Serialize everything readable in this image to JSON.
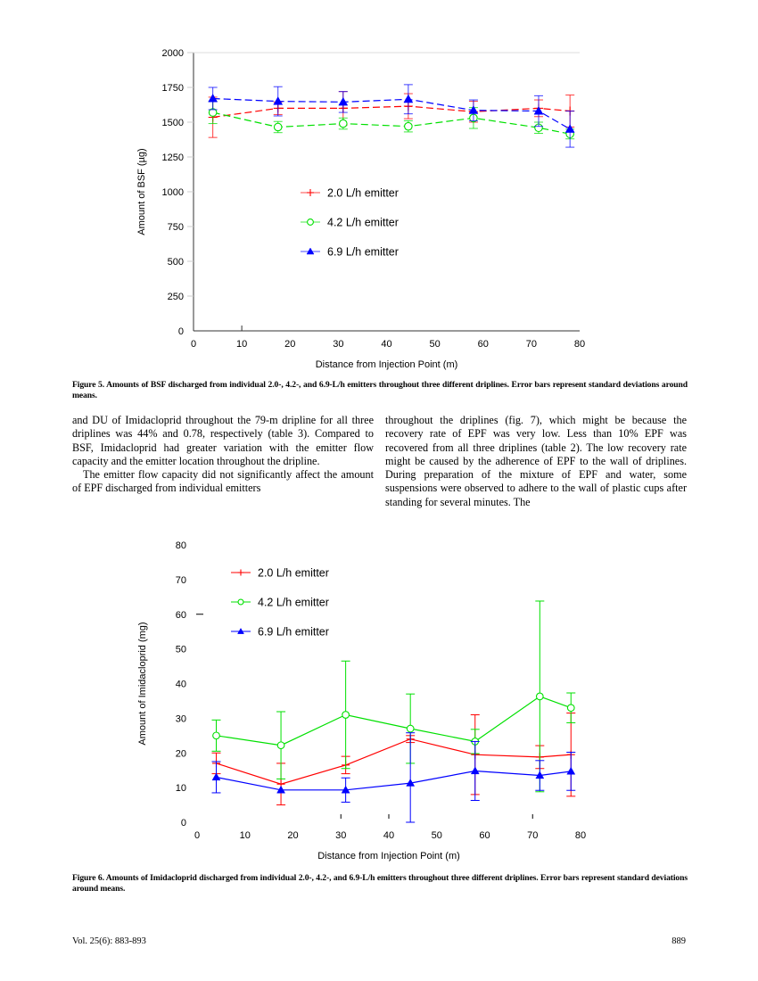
{
  "chart_data": [
    {
      "type": "line",
      "title": "",
      "xlabel": "Distance from Injection Point (m)",
      "ylabel": "Amount of BSF (µg)",
      "xlim": [
        0,
        80
      ],
      "ylim": [
        0,
        2000
      ],
      "xticks": [
        0,
        10,
        20,
        30,
        40,
        50,
        60,
        70,
        80
      ],
      "yticks": [
        0,
        250,
        500,
        750,
        1000,
        1250,
        1500,
        1750,
        2000
      ],
      "grid": false,
      "legend_position": "center-left",
      "x": [
        4,
        17.5,
        31,
        44.5,
        58,
        71.5,
        78
      ],
      "series": [
        {
          "name": "2.0 L/h emitter",
          "color": "#ff0000",
          "marker": "plus",
          "dash": "dashed",
          "values": [
            1535,
            1600,
            1600,
            1615,
            1575,
            1600,
            1580
          ],
          "errors": [
            145,
            45,
            120,
            90,
            75,
            60,
            115
          ]
        },
        {
          "name": "4.2 L/h emitter",
          "color": "#00e000",
          "marker": "circle",
          "dash": "dashed",
          "values": [
            1570,
            1465,
            1490,
            1470,
            1530,
            1460,
            1415
          ],
          "errors": [
            80,
            40,
            40,
            40,
            75,
            40,
            35
          ]
        },
        {
          "name": "6.9 L/h emitter",
          "color": "#0000ff",
          "marker": "triangle",
          "dash": "dashed",
          "values": [
            1670,
            1650,
            1645,
            1665,
            1585,
            1580,
            1450
          ],
          "errors": [
            80,
            105,
            75,
            105,
            75,
            110,
            130
          ]
        }
      ]
    },
    {
      "type": "line",
      "title": "",
      "xlabel": "Distance from Injection Point (m)",
      "ylabel": "Amount of Imidacloprid (mg)",
      "xlim": [
        0,
        80
      ],
      "ylim": [
        0,
        80
      ],
      "xticks": [
        0,
        10,
        20,
        30,
        40,
        50,
        60,
        70,
        80
      ],
      "yticks": [
        0,
        10,
        20,
        30,
        40,
        50,
        60,
        70,
        80
      ],
      "grid": false,
      "legend_position": "top-left",
      "x": [
        4,
        17.5,
        31,
        44.5,
        58,
        71.5,
        78
      ],
      "series": [
        {
          "name": "2.0 L/h emitter",
          "color": "#ff0000",
          "marker": "plus",
          "dash": "solid",
          "values": [
            17,
            11,
            16.5,
            24,
            19.5,
            18.8,
            19.5
          ],
          "errors": [
            3,
            6,
            2.5,
            1,
            11.5,
            3.3,
            12
          ]
        },
        {
          "name": "4.2 L/h emitter",
          "color": "#00e000",
          "marker": "circle",
          "dash": "solid",
          "values": [
            25,
            22.2,
            31,
            27,
            23.3,
            36.3,
            33
          ],
          "errors": [
            4.5,
            9.7,
            15.5,
            10,
            3.5,
            27.5,
            4.3
          ]
        },
        {
          "name": "6.9 L/h emitter",
          "color": "#0000ff",
          "marker": "triangle",
          "dash": "solid",
          "values": [
            13,
            9.3,
            9.3,
            11.3,
            14.8,
            13.5,
            14.7
          ],
          "errors": [
            4.5,
            0,
            3.5,
            14.5,
            8.5,
            4.3,
            5.5
          ]
        }
      ]
    }
  ],
  "captions": {
    "figure5": "Figure 5. Amounts of BSF discharged from individual 2.0-, 4.2-, and 6.9-L/h emitters throughout three different driplines. Error bars represent standard deviations around means.",
    "figure6": "Figure 6. Amounts of Imidacloprid discharged from individual 2.0-, 4.2-, and 6.9-L/h emitters throughout three different driplines. Error bars represent standard deviations around means."
  },
  "body": {
    "left_col": [
      "and DU of Imidacloprid throughout the 79-m dripline for all three driplines was 44% and 0.78, respectively (table 3). Compared to BSF, Imidacloprid had greater variation with the emitter flow capacity and the emitter location throughout the dripline.",
      "The emitter flow capacity did not significantly affect the amount of EPF discharged from individual emitters"
    ],
    "right_col": [
      "throughout the driplines (fig. 7), which might be because the recovery rate of EPF was very low. Less than 10% EPF was recovered from all three driplines (table 2). The low recovery rate might be caused by the adherence of EPF to the wall of driplines. During preparation of the mixture of EPF and water, some suspensions were observed to adhere to the wall of plastic cups after standing for several minutes. The"
    ]
  },
  "footer": {
    "journal": "Vol. 25(6): 883-893",
    "page": "889"
  }
}
